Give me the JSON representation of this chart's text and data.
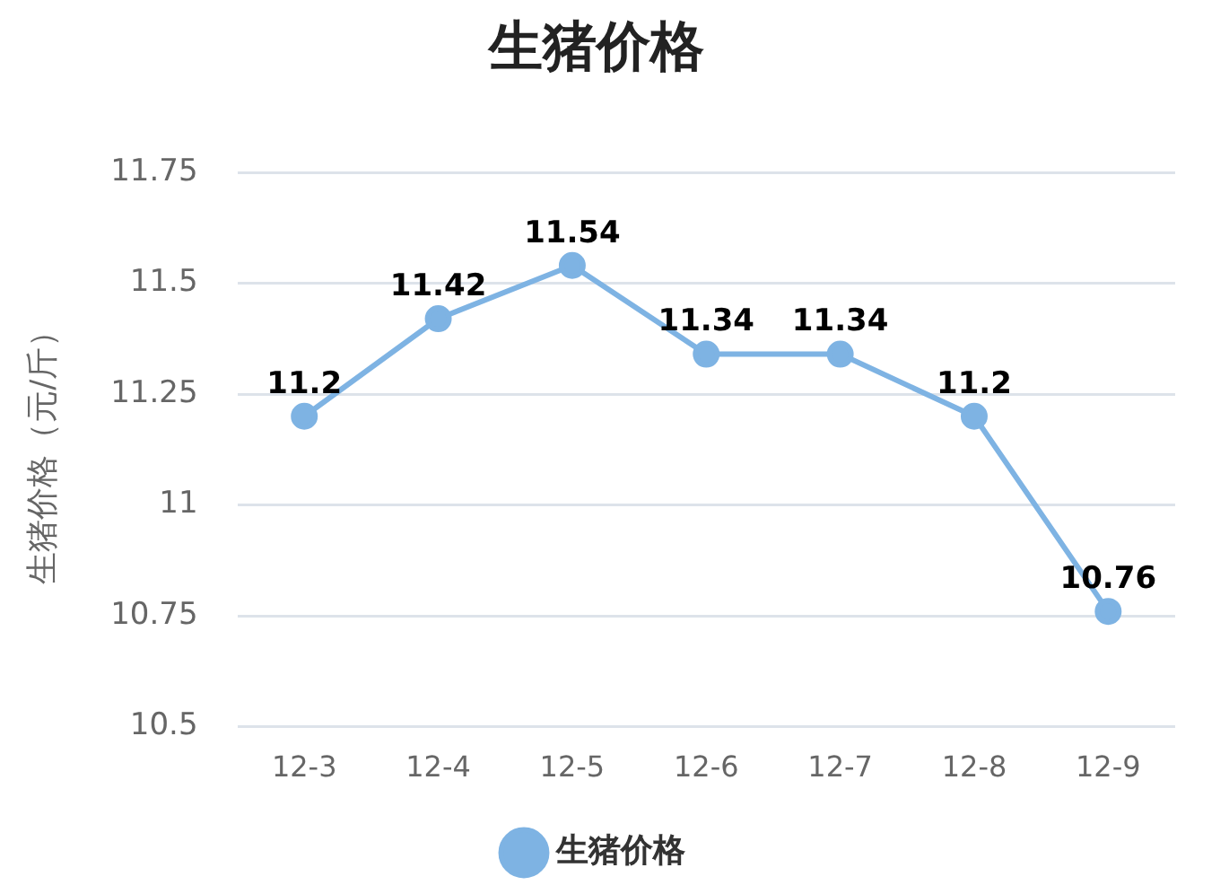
{
  "chart_data": {
    "type": "line",
    "title": "生猪价格",
    "ylabel": "生猪价格（元/斤）",
    "categories": [
      "12-3",
      "12-4",
      "12-5",
      "12-6",
      "12-7",
      "12-8",
      "12-9"
    ],
    "series": [
      {
        "name": "生猪价格",
        "color": "#7eb3e3",
        "values": [
          11.2,
          11.42,
          11.54,
          11.34,
          11.34,
          11.2,
          10.76
        ]
      }
    ],
    "ylim": [
      10.5,
      11.75
    ],
    "yticks": [
      10.5,
      10.75,
      11,
      11.25,
      11.5,
      11.75
    ],
    "grid": "y",
    "legend": "bottom",
    "marker": "circle",
    "line_style": "solid",
    "data_labels": true
  }
}
